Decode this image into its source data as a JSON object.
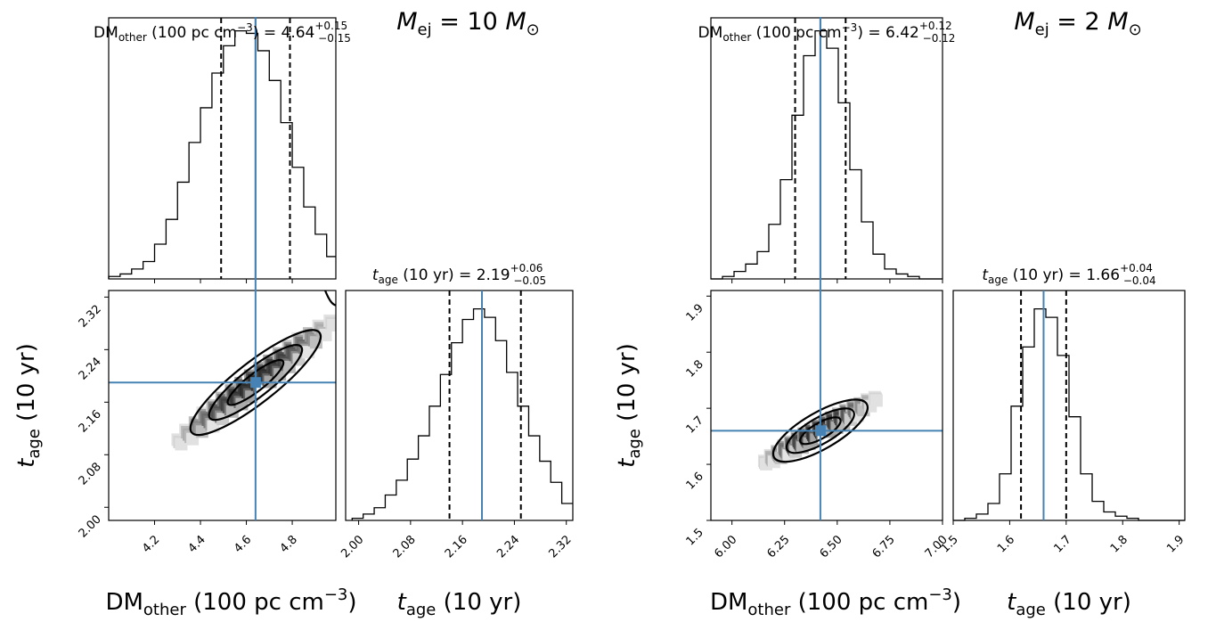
{
  "figure_panels": [
    {
      "mass_label": {
        "m": "M",
        "sub": "ej",
        "eq": " = 10 ",
        "unit": "M",
        "usub": "⊙"
      },
      "dm_title": {
        "pre": "DM",
        "sub": "other",
        "mid": " (100 pc cm",
        "sup": "−3",
        "post": ") = 4.64",
        "plus": "+0.15",
        "minus": "−0.15"
      },
      "t_title": {
        "pre": "t",
        "sub": "age",
        "mid": " (10 yr) = 2.19",
        "plus": "+0.06",
        "minus": "−0.05"
      },
      "x_label_dm": {
        "pre": "DM",
        "sub": "other",
        "mid": " (100 pc cm",
        "sup": "−3",
        "post": ")"
      },
      "x_label_t": {
        "pre": "t",
        "sub": "age",
        "post": " (10 yr)"
      },
      "y_label_t": {
        "pre": "t",
        "sub": "age",
        "post": " (10 yr)"
      },
      "dm_ticks": [
        "4.2",
        "4.4",
        "4.6",
        "4.8"
      ],
      "t_ticks": [
        "2.00",
        "2.08",
        "2.16",
        "2.24",
        "2.32"
      ]
    },
    {
      "mass_label": {
        "m": "M",
        "sub": "ej",
        "eq": " = 2 ",
        "unit": "M",
        "usub": "⊙"
      },
      "dm_title": {
        "pre": "DM",
        "sub": "other",
        "mid": " (100 pc cm",
        "sup": "−3",
        "post": ") = 6.42",
        "plus": "+0.12",
        "minus": "−0.12"
      },
      "t_title": {
        "pre": "t",
        "sub": "age",
        "mid": " (10 yr) = 1.66",
        "plus": "+0.04",
        "minus": "−0.04"
      },
      "x_label_dm": {
        "pre": "DM",
        "sub": "other",
        "mid": " (100 pc cm",
        "sup": "−3",
        "post": ")"
      },
      "x_label_t": {
        "pre": "t",
        "sub": "age",
        "post": " (10 yr)"
      },
      "y_label_t": {
        "pre": "t",
        "sub": "age",
        "post": " (10 yr)"
      },
      "dm_ticks": [
        "6.00",
        "6.25",
        "6.50",
        "6.75",
        "7.00"
      ],
      "t_ticks": [
        "1.5",
        "1.6",
        "1.7",
        "1.8",
        "1.9"
      ]
    }
  ],
  "chart_data": [
    {
      "type": "corner",
      "title": "M_ej = 10 M_sun",
      "parameters": [
        "DM_other (100 pc cm^-3)",
        "t_age (10 yr)"
      ],
      "truth": {
        "DM_other": 4.64,
        "t_age": 2.19
      },
      "summary": {
        "DM_other": {
          "median": 4.64,
          "plus": 0.15,
          "minus": 0.15
        },
        "t_age": {
          "median": 2.19,
          "plus": 0.06,
          "minus": 0.05
        }
      },
      "xlim_DM_other": [
        4.0,
        4.99
      ],
      "ylim_t_age": [
        1.98,
        2.33
      ],
      "hist_DM_other": {
        "bin_edges": [
          4.0,
          4.05,
          4.1,
          4.15,
          4.2,
          4.25,
          4.3,
          4.35,
          4.4,
          4.45,
          4.5,
          4.55,
          4.6,
          4.65,
          4.7,
          4.75,
          4.8,
          4.85,
          4.9,
          4.95,
          4.99
        ],
        "counts": [
          0.01,
          0.02,
          0.04,
          0.07,
          0.14,
          0.24,
          0.39,
          0.55,
          0.69,
          0.83,
          0.94,
          1.0,
          0.99,
          0.92,
          0.8,
          0.63,
          0.45,
          0.29,
          0.18,
          0.09
        ]
      },
      "hist_t_age": {
        "bin_edges": [
          1.99,
          2.007,
          2.024,
          2.041,
          2.058,
          2.075,
          2.092,
          2.109,
          2.126,
          2.143,
          2.16,
          2.177,
          2.194,
          2.211,
          2.228,
          2.245,
          2.262,
          2.279,
          2.296,
          2.313,
          2.33
        ],
        "counts": [
          0.01,
          0.03,
          0.06,
          0.12,
          0.19,
          0.29,
          0.4,
          0.54,
          0.69,
          0.84,
          0.95,
          1.0,
          0.96,
          0.85,
          0.7,
          0.54,
          0.4,
          0.28,
          0.18,
          0.08
        ]
      },
      "contour_2d": {
        "center_DM": 4.64,
        "center_t": 2.19,
        "levels": 3
      }
    },
    {
      "type": "corner",
      "title": "M_ej = 2 M_sun",
      "parameters": [
        "DM_other (100 pc cm^-3)",
        "t_age (10 yr)"
      ],
      "truth": {
        "DM_other": 6.42,
        "t_age": 1.66
      },
      "summary": {
        "DM_other": {
          "median": 6.42,
          "plus": 0.12,
          "minus": 0.12
        },
        "t_age": {
          "median": 1.66,
          "plus": 0.04,
          "minus": 0.04
        }
      },
      "xlim_DM_other": [
        5.9,
        7.0
      ],
      "ylim_t_age": [
        1.5,
        1.91
      ],
      "hist_DM_other": {
        "bin_edges": [
          5.9,
          5.955,
          6.01,
          6.065,
          6.12,
          6.175,
          6.23,
          6.285,
          6.34,
          6.395,
          6.45,
          6.505,
          6.56,
          6.615,
          6.67,
          6.725,
          6.78,
          6.835,
          6.89,
          6.945,
          7.0
        ],
        "counts": [
          0.0,
          0.01,
          0.03,
          0.06,
          0.11,
          0.22,
          0.4,
          0.66,
          0.9,
          1.0,
          0.93,
          0.71,
          0.44,
          0.23,
          0.1,
          0.04,
          0.02,
          0.01,
          0.0,
          0.0
        ]
      },
      "hist_t_age": {
        "bin_edges": [
          1.5,
          1.5205,
          1.541,
          1.5615,
          1.582,
          1.6025,
          1.623,
          1.6435,
          1.664,
          1.6845,
          1.705,
          1.7255,
          1.746,
          1.7665,
          1.787,
          1.8075,
          1.828,
          1.8485,
          1.869,
          1.8895,
          1.91
        ],
        "counts": [
          0.0,
          0.01,
          0.03,
          0.08,
          0.22,
          0.54,
          0.82,
          1.0,
          0.96,
          0.78,
          0.49,
          0.22,
          0.09,
          0.04,
          0.02,
          0.01,
          0.0,
          0.0,
          0.0,
          0.0
        ]
      },
      "contour_2d": {
        "center_DM": 6.42,
        "center_t": 1.66,
        "levels": 3
      }
    }
  ]
}
